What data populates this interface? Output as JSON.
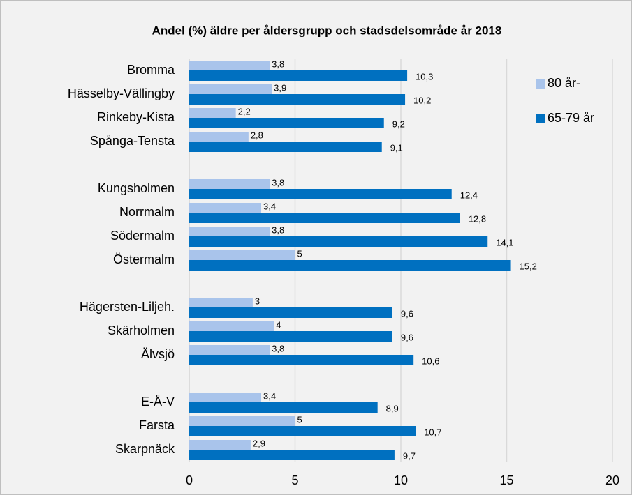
{
  "chart_data": {
    "type": "hbar",
    "title": "Andel (%) äldre per åldersgrupp och stadsdelsområde år 2018",
    "categories": [
      "Bromma",
      "Hässelby-Vällingby",
      "Rinkeby-Kista",
      "Spånga-Tensta",
      null,
      "Kungsholmen",
      "Norrmalm",
      "Södermalm",
      "Östermalm",
      null,
      "Hägersten-Liljeh.",
      "Skärholmen",
      "Älvsjö",
      null,
      "E-Å-V",
      "Farsta",
      "Skarpnäck"
    ],
    "series": [
      {
        "name": "80 år-",
        "color": "#a9c4eb",
        "values": [
          3.8,
          3.9,
          2.2,
          2.8,
          null,
          3.8,
          3.4,
          3.8,
          5,
          null,
          3,
          4,
          3.8,
          null,
          3.4,
          5,
          2.9
        ],
        "value_labels": [
          "3,8",
          "3,9",
          "2,2",
          "2,8",
          null,
          "3,8",
          "3,4",
          "3,8",
          "5",
          null,
          "3",
          "4",
          "3,8",
          null,
          "3,4",
          "5",
          "2,9"
        ]
      },
      {
        "name": "65-79 år",
        "color": "#0070c0",
        "values": [
          10.3,
          10.2,
          9.2,
          9.1,
          null,
          12.4,
          12.8,
          14.1,
          15.2,
          null,
          9.6,
          9.6,
          10.6,
          null,
          8.9,
          10.7,
          9.7
        ],
        "value_labels": [
          "10,3",
          "10,2",
          "9,2",
          "9,1",
          null,
          "12,4",
          "12,8",
          "14,1",
          "15,2",
          null,
          "9,6",
          "9,6",
          "10,6",
          null,
          "8,9",
          "10,7",
          "9,7"
        ]
      }
    ],
    "xlim": [
      0,
      20
    ],
    "xticks": [
      0,
      5,
      10,
      15,
      20
    ],
    "grid": true,
    "legend": "top-right"
  }
}
